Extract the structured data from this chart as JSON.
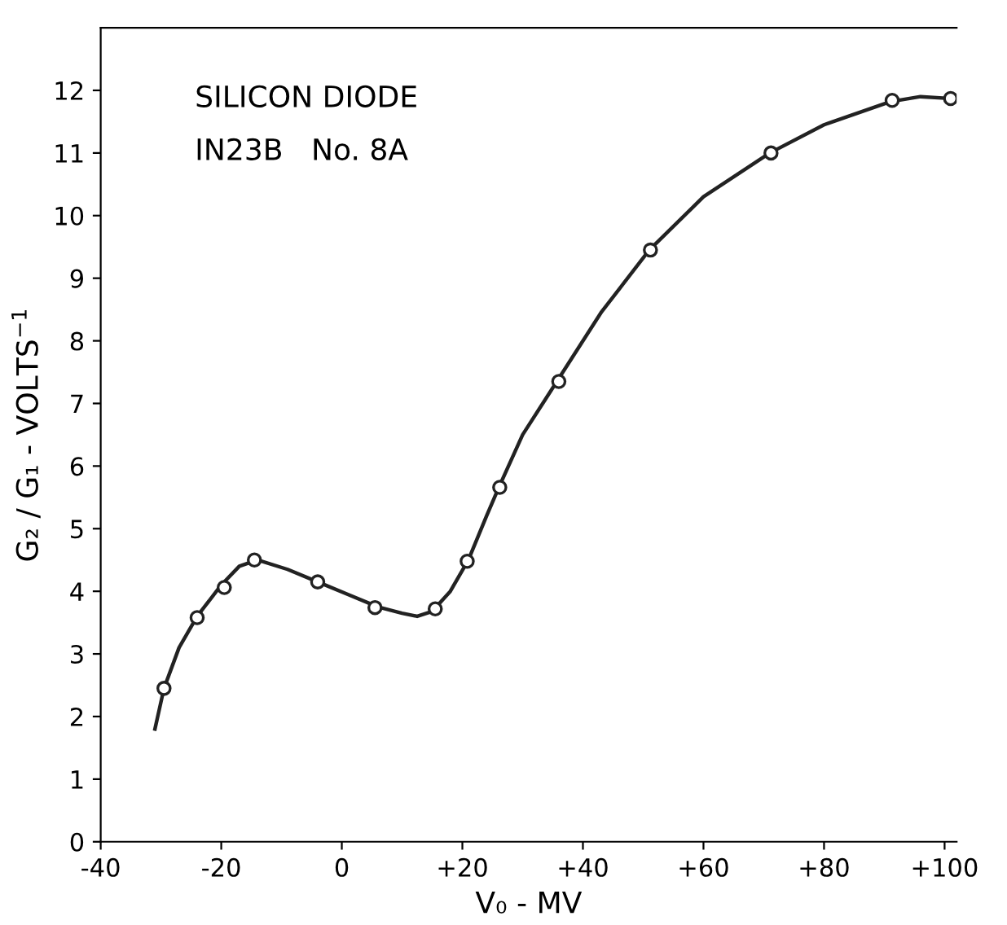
{
  "chart_data": {
    "type": "scatter",
    "xlabel": "V₀ - MV",
    "ylabel": "G₂ / G₁ - VOLTS$^{−1}$",
    "annotations": [
      "SILICON DIODE",
      "IN23B   No. 8A"
    ],
    "xlim": [
      -40,
      102
    ],
    "ylim": [
      0,
      13
    ],
    "xticks": [
      -40,
      -20,
      0,
      {
        "value": 20,
        "label": "+20"
      },
      {
        "value": 40,
        "label": "+40"
      },
      {
        "value": 60,
        "label": "+60"
      },
      {
        "value": 80,
        "label": "+80"
      },
      {
        "value": 100,
        "label": "+100"
      }
    ],
    "yticks": [
      0,
      1,
      2,
      3,
      4,
      5,
      6,
      7,
      8,
      9,
      10,
      11,
      12
    ],
    "grid": false,
    "legend": false,
    "series": [
      {
        "type": "line",
        "color": "#222222",
        "marker": "none",
        "line_style": "solid",
        "x": [
          -31,
          -29.5,
          -27,
          -24,
          -20,
          -17,
          -14,
          -9,
          -4,
          1,
          6,
          10,
          12.5,
          15,
          18,
          21,
          24,
          26,
          30,
          36,
          43,
          51,
          60,
          71,
          80,
          91,
          96,
          101
        ],
        "values": [
          1.8,
          2.45,
          3.1,
          3.6,
          4.1,
          4.4,
          4.5,
          4.35,
          4.15,
          3.95,
          3.75,
          3.65,
          3.6,
          3.68,
          4.0,
          4.5,
          5.2,
          5.65,
          6.5,
          7.4,
          8.45,
          9.45,
          10.3,
          11.0,
          11.45,
          11.82,
          11.9,
          11.87
        ]
      },
      {
        "color": "#222222",
        "marker": "circle",
        "x": [
          -29.5,
          -24,
          -19.5,
          -14.5,
          -4,
          5.5,
          15.5,
          20.8,
          26.2,
          36,
          51.2,
          71.2,
          91.3,
          101
        ],
        "values": [
          2.45,
          3.58,
          4.06,
          4.5,
          4.15,
          3.74,
          3.72,
          4.48,
          5.66,
          7.35,
          9.45,
          11.0,
          11.84,
          11.87
        ]
      }
    ]
  }
}
